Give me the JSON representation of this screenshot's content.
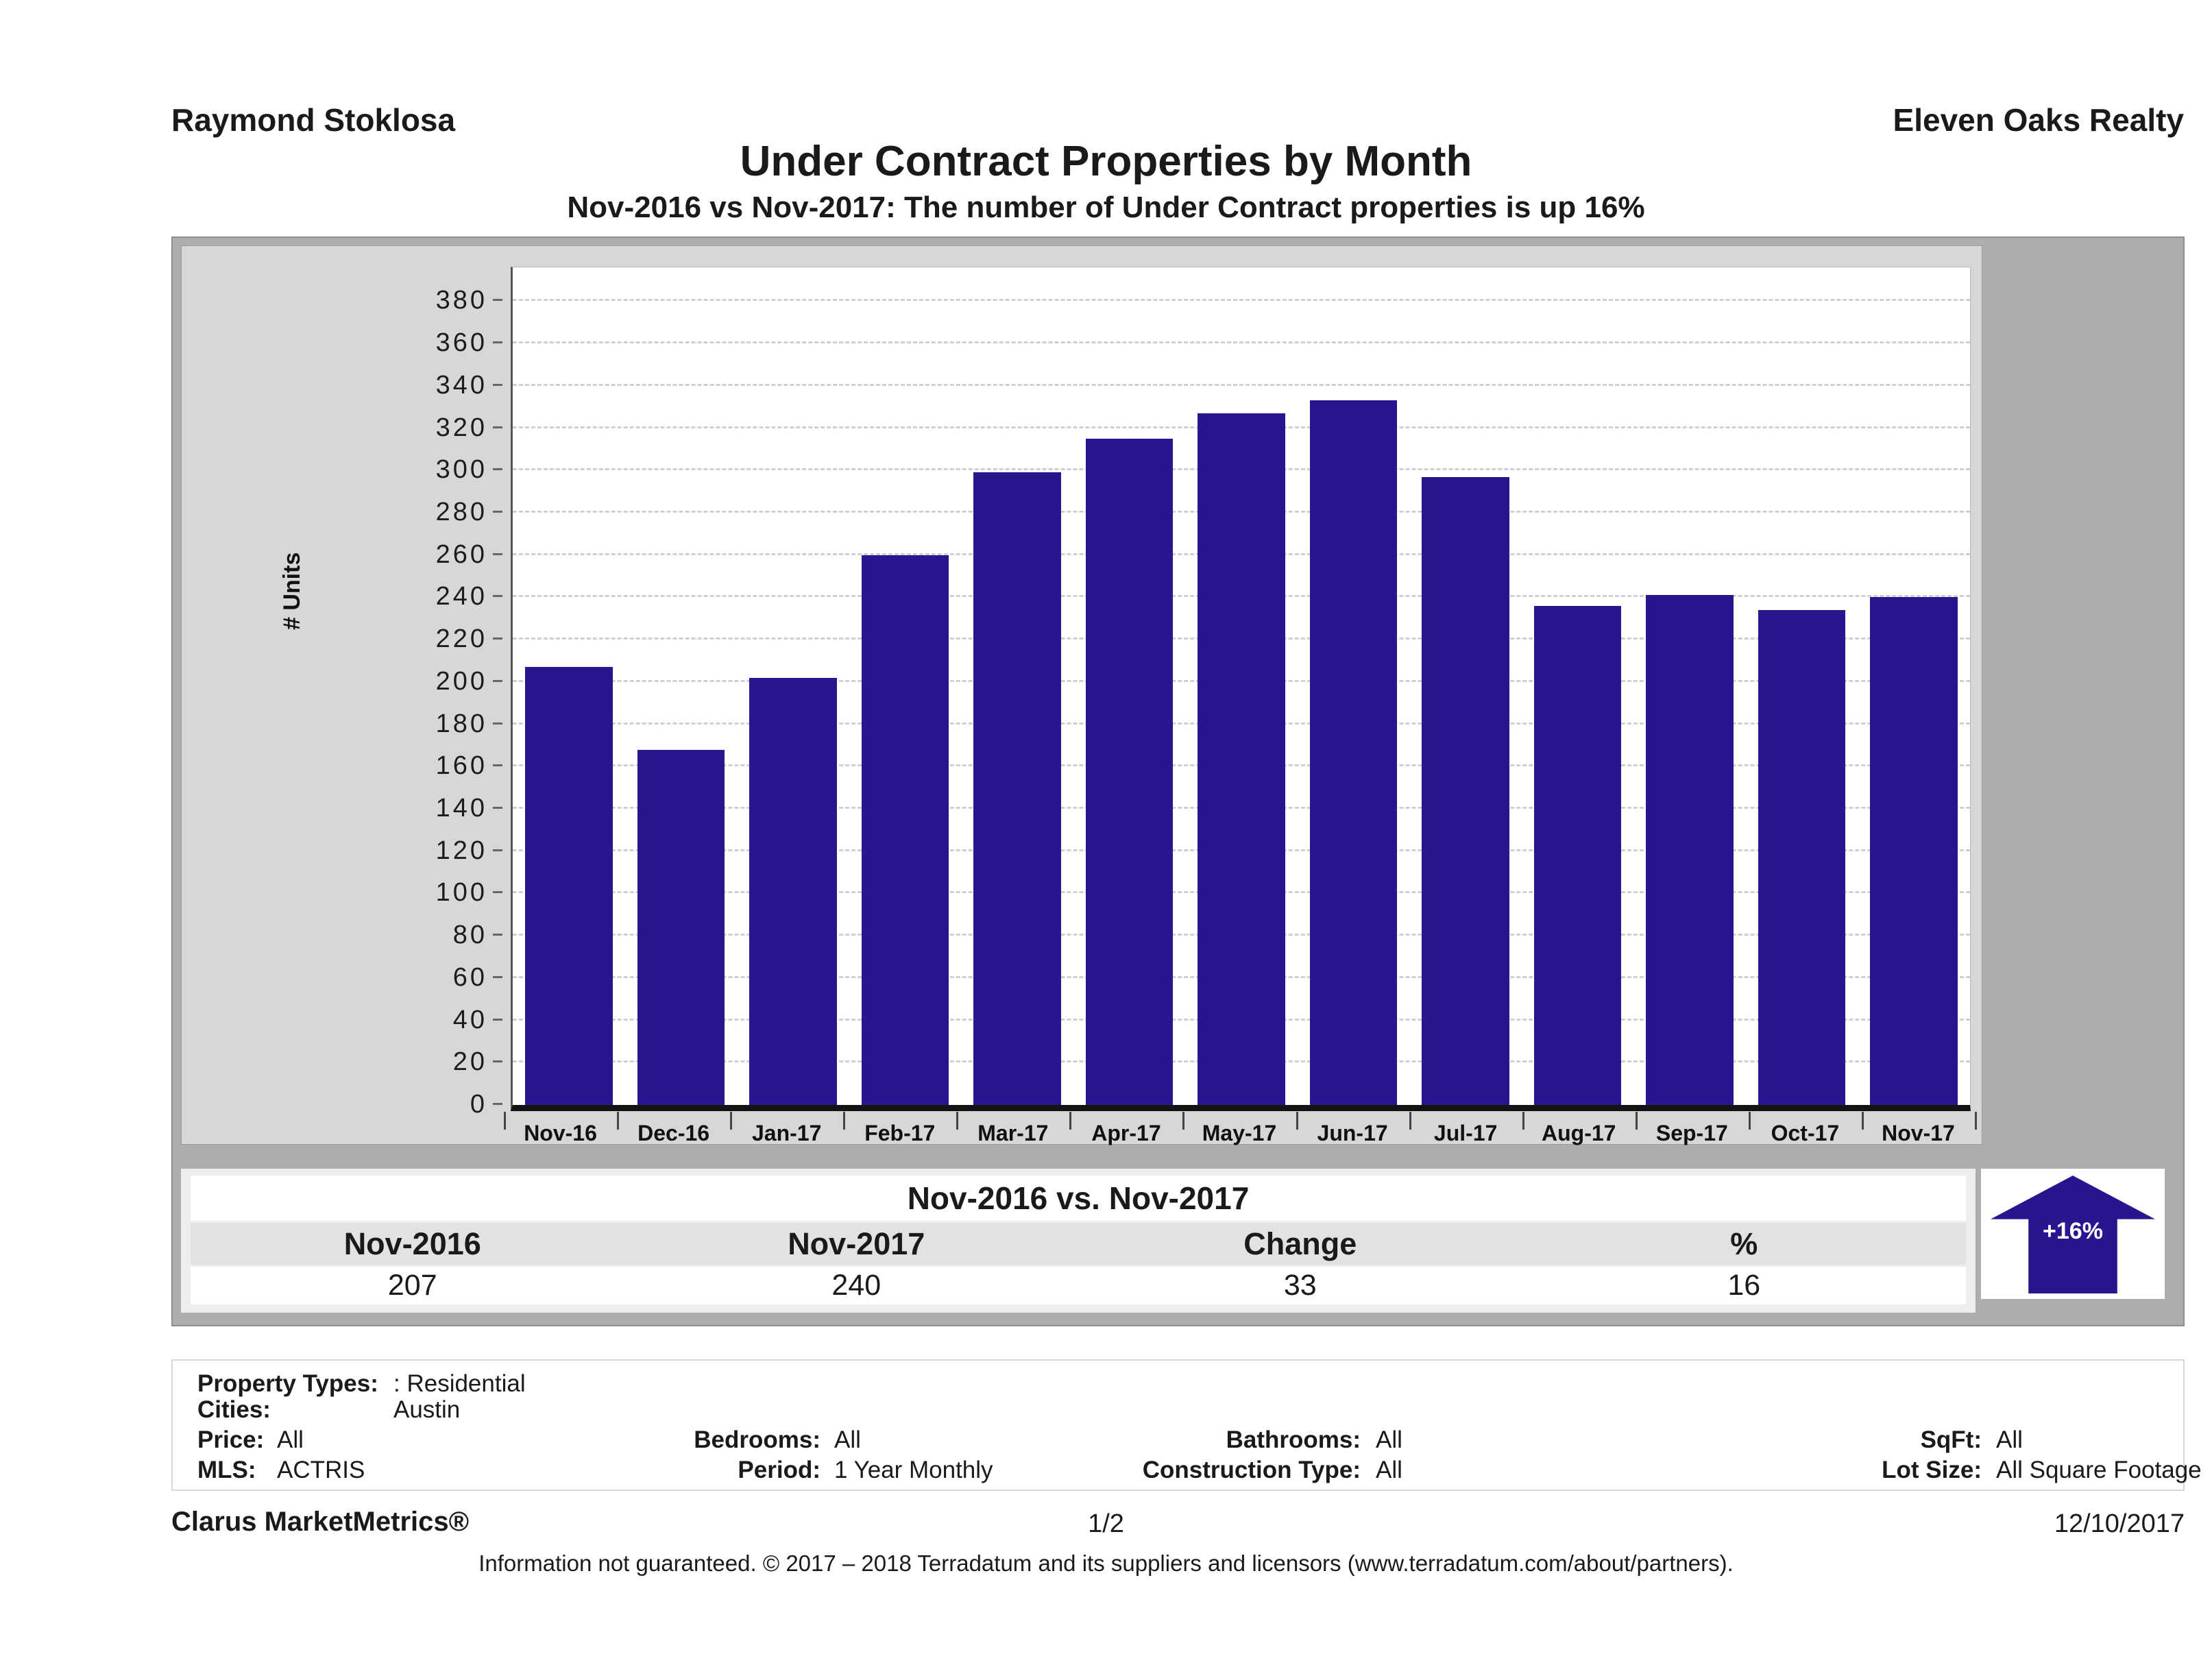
{
  "header": {
    "agent": "Raymond Stoklosa",
    "brokerage": "Eleven Oaks Realty",
    "title": "Under Contract Properties by Month",
    "subtitle": "Nov-2016 vs Nov-2017: The number of Under Contract  properties is up 16%"
  },
  "chart_data": {
    "type": "bar",
    "title": "Under Contract Properties by Month",
    "xlabel": "",
    "ylabel": "# Units",
    "ylim": [
      0,
      380
    ],
    "ytick_step": 20,
    "grid": "horizontal-dashed",
    "legend_position": "none",
    "bar_color": "#2a1590",
    "categories": [
      "Nov-16",
      "Dec-16",
      "Jan-17",
      "Feb-17",
      "Mar-17",
      "Apr-17",
      "May-17",
      "Jun-17",
      "Jul-17",
      "Aug-17",
      "Sep-17",
      "Oct-17",
      "Nov-17"
    ],
    "values": [
      207,
      168,
      202,
      260,
      299,
      315,
      327,
      333,
      297,
      236,
      241,
      234,
      240
    ]
  },
  "comparison": {
    "title": "Nov-2016 vs. Nov-2017",
    "columns": [
      "Nov-2016",
      "Nov-2017",
      "Change",
      "%"
    ],
    "values": [
      "207",
      "240",
      "33",
      "16"
    ],
    "badge": "+16%",
    "trend": "up",
    "arrow_color": "#2a1590"
  },
  "criteria": {
    "property_types_label": "Property Types:",
    "property_types_value": ": Residential",
    "cities_label": "Cities:",
    "cities_value": "Austin",
    "price_label": "Price:",
    "price_value": "All",
    "bedrooms_label": "Bedrooms:",
    "bedrooms_value": "All",
    "bathrooms_label": "Bathrooms:",
    "bathrooms_value": "All",
    "sqft_label": "SqFt:",
    "sqft_value": "All",
    "mls_label": "MLS:",
    "mls_value": "ACTRIS",
    "period_label": "Period:",
    "period_value": "1 Year Monthly",
    "construction_label": "Construction Type:",
    "construction_value": "All",
    "lot_label": "Lot Size:",
    "lot_value": "All Square Footage"
  },
  "footer": {
    "product": "Clarus MarketMetrics®",
    "page": "1/2",
    "date": "12/10/2017",
    "disclaimer": "Information not guaranteed. © 2017 – 2018 Terradatum and its suppliers and licensors (www.terradatum.com/about/partners)."
  }
}
